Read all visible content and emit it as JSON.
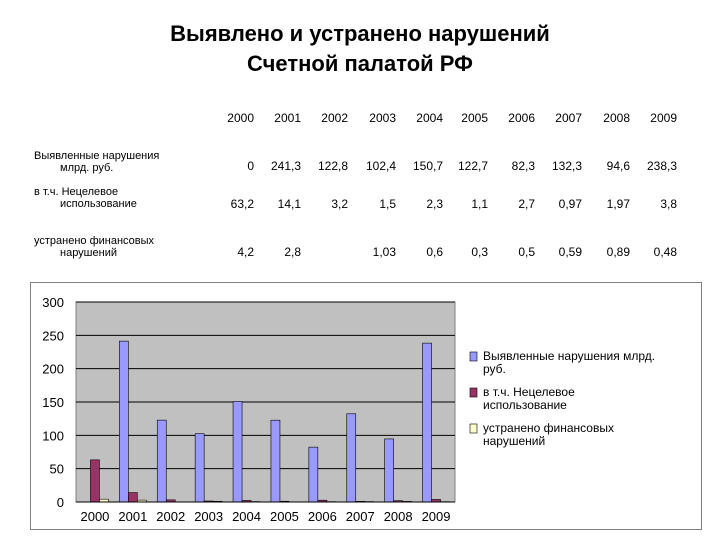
{
  "title": {
    "line1": "Выявлено и устранено нарушений",
    "line2": "Счетной палатой РФ"
  },
  "table": {
    "years": [
      "2000",
      "2001",
      "2002",
      "2003",
      "2004",
      "2005",
      "2006",
      "2007",
      "2008",
      "2009"
    ],
    "rows": [
      {
        "label_lines": [
          "Выявленные нарушения",
          "млрд. руб."
        ],
        "cells": [
          "0",
          "241,3",
          "122,8",
          "102,4",
          "150,7",
          "122,7",
          "82,3",
          "132,3",
          "94,6",
          "238,3"
        ]
      },
      {
        "label_lines": [
          "в т.ч. Нецелевое",
          "использование"
        ],
        "cells": [
          "63,2",
          "14,1",
          "3,2",
          "1,5",
          "2,3",
          "1,1",
          "2,7",
          "0,97",
          "1,97",
          "3,8"
        ]
      },
      {
        "label_lines": [
          "устранено финансовых",
          "нарушений"
        ],
        "cells": [
          "4,2",
          "2,8",
          "",
          "1,03",
          "0,6",
          "0,3",
          "0,5",
          "0,59",
          "0,89",
          "0,48"
        ]
      }
    ]
  },
  "chart_data": {
    "type": "bar",
    "categories": [
      "2000",
      "2001",
      "2002",
      "2003",
      "2004",
      "2005",
      "2006",
      "2007",
      "2008",
      "2009"
    ],
    "ylim": [
      0,
      300
    ],
    "yticks": [
      "0",
      "50",
      "100",
      "150",
      "200",
      "250",
      "300"
    ],
    "grid": true,
    "legend_position": "right",
    "series": [
      {
        "name": "Выявленные нарушения млрд. руб.",
        "values": [
          0,
          241.3,
          122.8,
          102.4,
          150.7,
          122.7,
          82.3,
          132.3,
          94.6,
          238.3
        ],
        "color": "#9999ff"
      },
      {
        "name": "в т.ч. Нецелевое использование",
        "values": [
          63.2,
          14.1,
          3.2,
          1.5,
          2.3,
          1.1,
          2.7,
          0.97,
          1.97,
          3.8
        ],
        "color": "#993366"
      },
      {
        "name": "устранено финансовых нарушений",
        "values": [
          4.2,
          2.8,
          0,
          1.03,
          0.6,
          0.3,
          0.5,
          0.59,
          0.89,
          0.48
        ],
        "color": "#ffffcc"
      }
    ],
    "legend_lines": [
      [
        "Выявленные нарушения млрд.",
        "руб."
      ],
      [
        "в т.ч. Нецелевое",
        "использование"
      ],
      [
        "устранено финансовых",
        "нарушений"
      ]
    ],
    "plot_background": "#c0c0c0"
  }
}
